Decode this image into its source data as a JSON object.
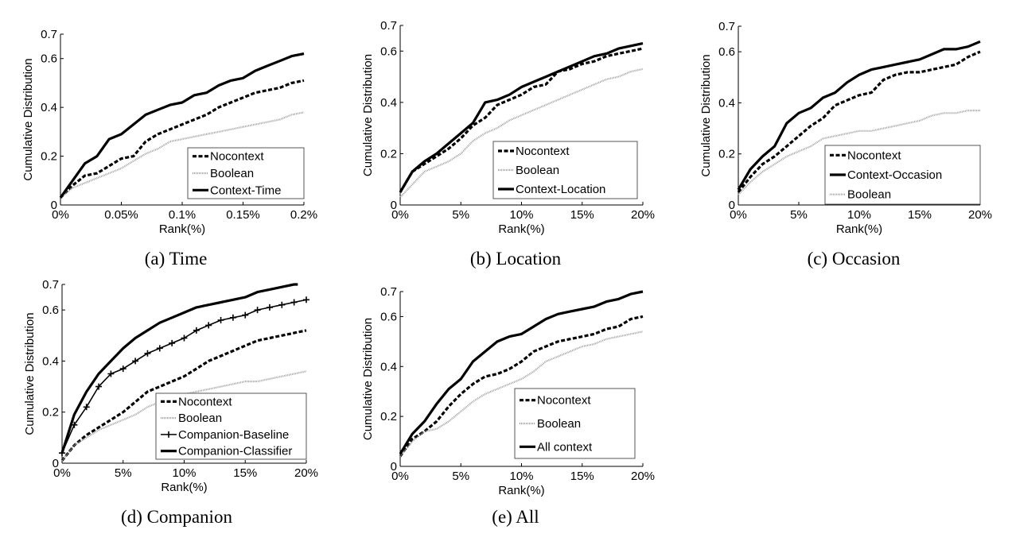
{
  "chart_data": [
    {
      "type": "line",
      "caption": "(a) Time",
      "xlabel": "Rank(%)",
      "ylabel": "Cumulative Distribution",
      "xlim": [
        0,
        0.2
      ],
      "ylim": [
        0,
        0.7
      ],
      "xticks": [
        0,
        0.05,
        0.1,
        0.15,
        0.2
      ],
      "xtick_labels": [
        "0%",
        "0.05%",
        "0.1%",
        "0.15%",
        "0.2%"
      ],
      "yticks": [
        0,
        0.2,
        0.4,
        0.6,
        0.7
      ],
      "ytick_labels": [
        "0",
        "0.2",
        "0.4",
        "0.6",
        "0.7"
      ],
      "legend_position": "bottom-right",
      "x": [
        0,
        0.01,
        0.02,
        0.03,
        0.04,
        0.05,
        0.06,
        0.07,
        0.08,
        0.09,
        0.1,
        0.11,
        0.12,
        0.13,
        0.14,
        0.15,
        0.16,
        0.17,
        0.18,
        0.19,
        0.2
      ],
      "series": [
        {
          "name": "Nocontext",
          "style": "dashed",
          "values": [
            0.03,
            0.08,
            0.12,
            0.13,
            0.16,
            0.19,
            0.2,
            0.26,
            0.29,
            0.31,
            0.33,
            0.35,
            0.37,
            0.4,
            0.42,
            0.44,
            0.46,
            0.47,
            0.48,
            0.5,
            0.51
          ]
        },
        {
          "name": "Boolean",
          "style": "dotted",
          "values": [
            0.03,
            0.07,
            0.09,
            0.11,
            0.13,
            0.15,
            0.18,
            0.21,
            0.23,
            0.26,
            0.27,
            0.28,
            0.29,
            0.3,
            0.31,
            0.32,
            0.33,
            0.34,
            0.35,
            0.37,
            0.38
          ]
        },
        {
          "name": "Context-Time",
          "style": "solid",
          "values": [
            0.03,
            0.1,
            0.17,
            0.2,
            0.27,
            0.29,
            0.33,
            0.37,
            0.39,
            0.41,
            0.42,
            0.45,
            0.46,
            0.49,
            0.51,
            0.52,
            0.55,
            0.57,
            0.59,
            0.61,
            0.62
          ]
        }
      ]
    },
    {
      "type": "line",
      "caption": "(b) Location",
      "xlabel": "Rank(%)",
      "ylabel": "Cumulative Distribution",
      "xlim": [
        0,
        20
      ],
      "ylim": [
        0,
        0.7
      ],
      "xticks": [
        0,
        5,
        10,
        15,
        20
      ],
      "xtick_labels": [
        "0%",
        "5%",
        "10%",
        "15%",
        "20%"
      ],
      "yticks": [
        0,
        0.2,
        0.4,
        0.6,
        0.7
      ],
      "ytick_labels": [
        "0",
        "0.2",
        "0.4",
        "0.6",
        "0.7"
      ],
      "legend_position": "bottom-right",
      "x": [
        0,
        1,
        2,
        3,
        4,
        5,
        6,
        7,
        8,
        9,
        10,
        11,
        12,
        13,
        14,
        15,
        16,
        17,
        18,
        19,
        20
      ],
      "series": [
        {
          "name": "Nocontext",
          "style": "dashed",
          "values": [
            0.05,
            0.13,
            0.16,
            0.19,
            0.22,
            0.26,
            0.31,
            0.34,
            0.39,
            0.41,
            0.43,
            0.46,
            0.47,
            0.52,
            0.53,
            0.55,
            0.56,
            0.58,
            0.59,
            0.6,
            0.61
          ]
        },
        {
          "name": "Boolean",
          "style": "dotted",
          "values": [
            0.03,
            0.08,
            0.13,
            0.15,
            0.17,
            0.2,
            0.25,
            0.28,
            0.3,
            0.33,
            0.35,
            0.37,
            0.39,
            0.41,
            0.43,
            0.45,
            0.47,
            0.49,
            0.5,
            0.52,
            0.53
          ]
        },
        {
          "name": "Context-Location",
          "style": "solid",
          "values": [
            0.05,
            0.13,
            0.17,
            0.2,
            0.24,
            0.28,
            0.32,
            0.4,
            0.41,
            0.43,
            0.46,
            0.48,
            0.5,
            0.52,
            0.54,
            0.56,
            0.58,
            0.59,
            0.61,
            0.62,
            0.63
          ]
        }
      ]
    },
    {
      "type": "line",
      "caption": "(c) Occasion",
      "xlabel": "Rank(%)",
      "ylabel": "Cumulative Distribution",
      "xlim": [
        0,
        20
      ],
      "ylim": [
        0,
        0.7
      ],
      "xticks": [
        0,
        5,
        10,
        15,
        20
      ],
      "xtick_labels": [
        "0%",
        "5%",
        "10%",
        "15%",
        "20%"
      ],
      "yticks": [
        0,
        0.2,
        0.4,
        0.6,
        0.7
      ],
      "ytick_labels": [
        "0",
        "0.2",
        "0.4",
        "0.6",
        "0.7"
      ],
      "legend_position": "bottom-right",
      "x": [
        0,
        1,
        2,
        3,
        4,
        5,
        6,
        7,
        8,
        9,
        10,
        11,
        12,
        13,
        14,
        15,
        16,
        17,
        18,
        19,
        20
      ],
      "series": [
        {
          "name": "Nocontext",
          "style": "dashed",
          "values": [
            0.05,
            0.11,
            0.16,
            0.19,
            0.23,
            0.27,
            0.31,
            0.34,
            0.39,
            0.41,
            0.43,
            0.44,
            0.49,
            0.51,
            0.52,
            0.52,
            0.53,
            0.54,
            0.55,
            0.58,
            0.6
          ]
        },
        {
          "name": "Context-Occasion",
          "style": "solid",
          "values": [
            0.06,
            0.14,
            0.19,
            0.23,
            0.32,
            0.36,
            0.38,
            0.42,
            0.44,
            0.48,
            0.51,
            0.53,
            0.54,
            0.55,
            0.56,
            0.57,
            0.59,
            0.61,
            0.61,
            0.62,
            0.64
          ]
        },
        {
          "name": "Boolean",
          "style": "dotted",
          "values": [
            0.04,
            0.09,
            0.13,
            0.16,
            0.19,
            0.21,
            0.23,
            0.26,
            0.27,
            0.28,
            0.29,
            0.29,
            0.3,
            0.31,
            0.32,
            0.33,
            0.35,
            0.36,
            0.36,
            0.37,
            0.37
          ]
        }
      ]
    },
    {
      "type": "line",
      "caption": "(d) Companion",
      "xlabel": "Rank(%)",
      "ylabel": "Cumulative Distribution",
      "xlim": [
        0,
        20
      ],
      "ylim": [
        0,
        0.7
      ],
      "xticks": [
        0,
        5,
        10,
        15,
        20
      ],
      "xtick_labels": [
        "0%",
        "5%",
        "10%",
        "15%",
        "20%"
      ],
      "yticks": [
        0,
        0.2,
        0.4,
        0.6,
        0.7
      ],
      "ytick_labels": [
        "0",
        "0.2",
        "0.4",
        "0.6",
        "0.7"
      ],
      "legend_position": "bottom-right",
      "x": [
        0,
        1,
        2,
        3,
        4,
        5,
        6,
        7,
        8,
        9,
        10,
        11,
        12,
        13,
        14,
        15,
        16,
        17,
        18,
        19,
        20
      ],
      "series": [
        {
          "name": "Nocontext",
          "style": "dashed",
          "values": [
            0.01,
            0.07,
            0.11,
            0.14,
            0.17,
            0.2,
            0.24,
            0.28,
            0.3,
            0.32,
            0.34,
            0.37,
            0.4,
            0.42,
            0.44,
            0.46,
            0.48,
            0.49,
            0.5,
            0.51,
            0.52
          ]
        },
        {
          "name": "Boolean",
          "style": "dotted",
          "values": [
            0.01,
            0.07,
            0.1,
            0.13,
            0.15,
            0.17,
            0.19,
            0.22,
            0.24,
            0.26,
            0.27,
            0.28,
            0.29,
            0.3,
            0.31,
            0.32,
            0.32,
            0.33,
            0.34,
            0.35,
            0.36
          ]
        },
        {
          "name": "Companion-Baseline",
          "style": "plus",
          "values": [
            0.04,
            0.15,
            0.22,
            0.3,
            0.35,
            0.37,
            0.4,
            0.43,
            0.45,
            0.47,
            0.49,
            0.52,
            0.54,
            0.56,
            0.57,
            0.58,
            0.6,
            0.61,
            0.62,
            0.63,
            0.64
          ]
        },
        {
          "name": "Companion-Classifier",
          "style": "solid",
          "x": [
            0,
            1,
            2,
            3,
            4,
            5,
            6,
            7,
            8,
            9,
            10,
            11,
            12,
            13,
            14,
            15,
            16,
            17,
            18,
            19,
            19.3
          ],
          "values": [
            0.04,
            0.19,
            0.28,
            0.35,
            0.4,
            0.45,
            0.49,
            0.52,
            0.55,
            0.57,
            0.59,
            0.61,
            0.62,
            0.63,
            0.64,
            0.65,
            0.67,
            0.68,
            0.69,
            0.7,
            0.7
          ]
        }
      ]
    },
    {
      "type": "line",
      "caption": "(e) All",
      "xlabel": "Rank(%)",
      "ylabel": "Cumulative Distribution",
      "xlim": [
        0,
        20
      ],
      "ylim": [
        0,
        0.7
      ],
      "xticks": [
        0,
        5,
        10,
        15,
        20
      ],
      "xtick_labels": [
        "0%",
        "5%",
        "10%",
        "15%",
        "20%"
      ],
      "yticks": [
        0,
        0.2,
        0.4,
        0.6,
        0.7
      ],
      "ytick_labels": [
        "0",
        "0.2",
        "0.4",
        "0.6",
        "0.7"
      ],
      "legend_position": "bottom-right",
      "x": [
        0,
        1,
        2,
        3,
        4,
        5,
        6,
        7,
        8,
        9,
        10,
        11,
        12,
        13,
        14,
        15,
        16,
        17,
        18,
        19,
        20
      ],
      "series": [
        {
          "name": "Nocontext",
          "style": "dashed",
          "values": [
            0.04,
            0.11,
            0.14,
            0.18,
            0.24,
            0.29,
            0.33,
            0.36,
            0.37,
            0.39,
            0.42,
            0.46,
            0.48,
            0.5,
            0.51,
            0.52,
            0.53,
            0.55,
            0.56,
            0.59,
            0.6
          ]
        },
        {
          "name": "Boolean",
          "style": "dotted",
          "values": [
            0.04,
            0.1,
            0.14,
            0.15,
            0.18,
            0.22,
            0.26,
            0.29,
            0.31,
            0.33,
            0.35,
            0.38,
            0.42,
            0.44,
            0.46,
            0.48,
            0.49,
            0.51,
            0.52,
            0.53,
            0.54
          ]
        },
        {
          "name": "All context",
          "style": "solid",
          "values": [
            0.05,
            0.13,
            0.18,
            0.25,
            0.31,
            0.35,
            0.42,
            0.46,
            0.5,
            0.52,
            0.53,
            0.56,
            0.59,
            0.61,
            0.62,
            0.63,
            0.64,
            0.66,
            0.67,
            0.69,
            0.7
          ]
        }
      ]
    }
  ]
}
